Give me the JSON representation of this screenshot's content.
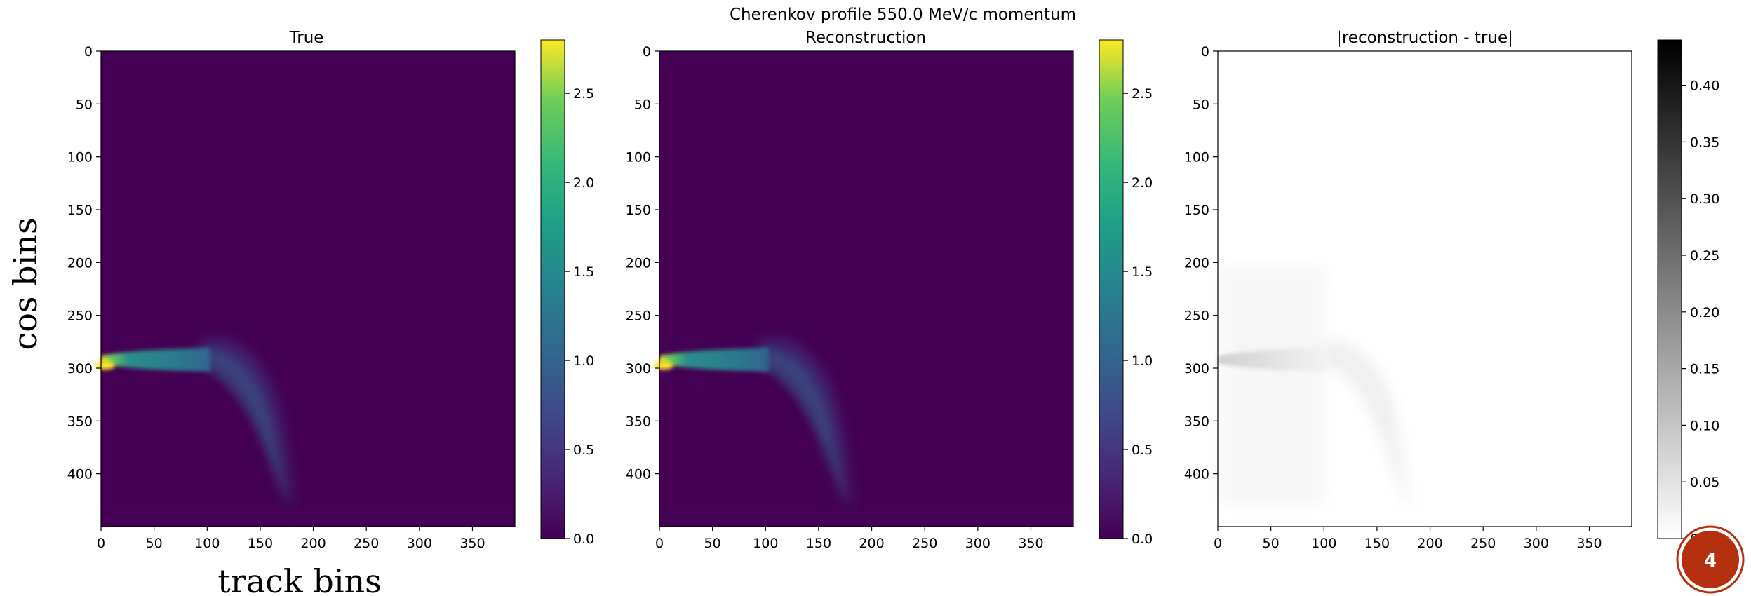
{
  "suptitle": "Cherenkov profile 550.0 MeV/c momentum",
  "axis_labels": {
    "x": "track bins",
    "y": "cos bins"
  },
  "badge": {
    "text": "4",
    "color": "#b5300e"
  },
  "chart_data": [
    {
      "type": "heatmap",
      "title": "True",
      "colormap": "viridis",
      "x_ticks": [
        "0",
        "50",
        "100",
        "150",
        "200",
        "250",
        "300",
        "350"
      ],
      "y_ticks": [
        "0",
        "50",
        "100",
        "150",
        "200",
        "250",
        "300",
        "350",
        "400"
      ],
      "xlim": [
        0,
        390
      ],
      "ylim": [
        450,
        0
      ],
      "colorbar": {
        "range": [
          0,
          2.8
        ],
        "ticks": [
          "0.0",
          "0.5",
          "1.0",
          "1.5",
          "2.0",
          "2.5"
        ]
      },
      "features": {
        "peak_cos_bin": 300,
        "peak_value": 2.8,
        "band_end_track_bin": 105,
        "tail_end_track_bin": 185,
        "tail_end_cos_bin": 440
      }
    },
    {
      "type": "heatmap",
      "title": "Reconstruction",
      "colormap": "viridis",
      "x_ticks": [
        "0",
        "50",
        "100",
        "150",
        "200",
        "250",
        "300",
        "350"
      ],
      "y_ticks": [
        "0",
        "50",
        "100",
        "150",
        "200",
        "250",
        "300",
        "350",
        "400"
      ],
      "xlim": [
        0,
        390
      ],
      "ylim": [
        450,
        0
      ],
      "colorbar": {
        "range": [
          0,
          2.8
        ],
        "ticks": [
          "0.0",
          "0.5",
          "1.0",
          "1.5",
          "2.0",
          "2.5"
        ]
      },
      "features": {
        "peak_cos_bin": 300,
        "peak_value": 2.8,
        "band_end_track_bin": 105,
        "tail_end_track_bin": 185,
        "tail_end_cos_bin": 440
      }
    },
    {
      "type": "heatmap",
      "title": "|reconstruction - true|",
      "colormap": "greys",
      "x_ticks": [
        "0",
        "50",
        "100",
        "150",
        "200",
        "250",
        "300",
        "350"
      ],
      "y_ticks": [
        "0",
        "50",
        "100",
        "150",
        "200",
        "250",
        "300",
        "350",
        "400"
      ],
      "xlim": [
        0,
        390
      ],
      "ylim": [
        450,
        0
      ],
      "colorbar": {
        "range": [
          0,
          0.44
        ],
        "ticks": [
          "0.00",
          "0.05",
          "0.10",
          "0.15",
          "0.20",
          "0.25",
          "0.30",
          "0.35",
          "0.40"
        ]
      },
      "features": {
        "peak_cos_bin": 300,
        "peak_value": 0.04,
        "band_end_track_bin": 105,
        "tail_end_track_bin": 185,
        "tail_end_cos_bin": 440
      }
    }
  ]
}
